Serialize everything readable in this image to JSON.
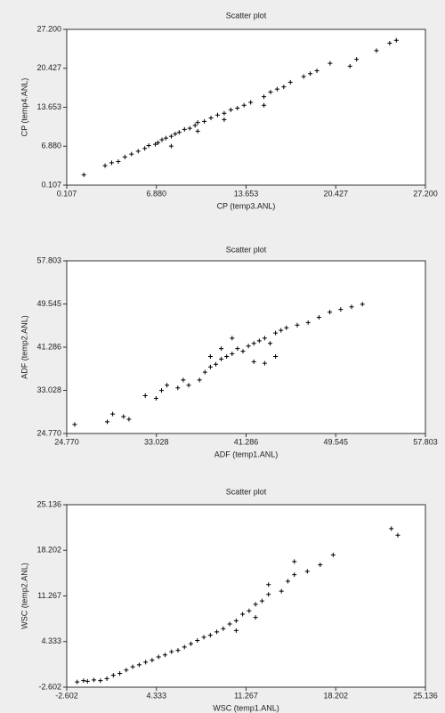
{
  "chart_data": [
    {
      "type": "scatter",
      "title": "Scatter plot",
      "x_label": "CP (temp3.ANL)",
      "y_label": "CP (temp4.ANL)",
      "color": "#000000",
      "xlim": [
        0.107,
        27.2
      ],
      "ylim": [
        0.107,
        27.2
      ],
      "xticks": [
        {
          "value": 0.107,
          "label": "0.107"
        },
        {
          "value": 6.88,
          "label": "6.880"
        },
        {
          "value": 13.653,
          "label": "13.653"
        },
        {
          "value": 20.427,
          "label": "20.427"
        },
        {
          "value": 27.2,
          "label": "27.200"
        }
      ],
      "yticks": [
        {
          "value": 0.107,
          "label": "0.107"
        },
        {
          "value": 6.88,
          "label": "6.880"
        },
        {
          "value": 13.653,
          "label": "13.653"
        },
        {
          "value": 20.427,
          "label": "20.427"
        },
        {
          "value": 27.2,
          "label": "27.200"
        }
      ],
      "x": [
        1.4,
        3,
        3.5,
        4,
        4.5,
        5,
        5.5,
        6,
        6.3,
        6.8,
        7,
        7.3,
        7.6,
        8,
        8.3,
        8.6,
        9,
        9.4,
        9.8,
        10,
        10.5,
        11,
        11.5,
        12,
        12.5,
        13,
        13.5,
        14,
        15,
        15.5,
        16,
        16.5,
        17,
        18,
        18.5,
        19,
        20,
        21.5,
        22,
        23.5,
        24.5,
        25,
        8,
        10,
        12,
        15
      ],
      "values": [
        1.9,
        3.5,
        4,
        4.2,
        5,
        5.5,
        6,
        6.5,
        7,
        7.2,
        7.5,
        8,
        8.3,
        8.6,
        9,
        9.3,
        9.8,
        10,
        10.5,
        11,
        11.2,
        11.8,
        12.3,
        12.6,
        13.2,
        13.5,
        14,
        14.5,
        15.5,
        16.3,
        16.8,
        17.2,
        18,
        19,
        19.5,
        20,
        21.3,
        20.8,
        22,
        23.5,
        24.8,
        25.3,
        6.9,
        9.5,
        11.5,
        14
      ]
    },
    {
      "type": "scatter",
      "title": "Scatter plot",
      "x_label": "ADF (temp1.ANL)",
      "y_label": "ADF (temp2.ANL)",
      "color": "#000000",
      "xlim": [
        24.77,
        57.803
      ],
      "ylim": [
        24.77,
        57.803
      ],
      "xticks": [
        {
          "value": 24.77,
          "label": "24.770"
        },
        {
          "value": 33.028,
          "label": "33.028"
        },
        {
          "value": 41.286,
          "label": "41.286"
        },
        {
          "value": 49.545,
          "label": "49.545"
        },
        {
          "value": 57.803,
          "label": "57.803"
        }
      ],
      "yticks": [
        {
          "value": 24.77,
          "label": "24.770"
        },
        {
          "value": 33.028,
          "label": "33.028"
        },
        {
          "value": 41.286,
          "label": "41.286"
        },
        {
          "value": 49.545,
          "label": "49.545"
        },
        {
          "value": 57.803,
          "label": "57.803"
        }
      ],
      "x": [
        25.5,
        28.5,
        29,
        30,
        30.5,
        32,
        33,
        33.5,
        34,
        35,
        35.5,
        36,
        37,
        37.5,
        38,
        38.5,
        39,
        39.5,
        40,
        40.5,
        41,
        41.5,
        42,
        42.5,
        43,
        43.5,
        44,
        44.5,
        45,
        46,
        47,
        48,
        49,
        50,
        51,
        52,
        42,
        43,
        44,
        38,
        39,
        40
      ],
      "values": [
        26.5,
        27,
        28.5,
        28,
        27.5,
        32,
        31.5,
        33,
        34,
        33.5,
        35,
        34,
        35,
        36.5,
        37.5,
        38,
        39,
        39.5,
        40,
        41,
        40.5,
        41.5,
        42,
        42.5,
        43,
        42,
        44,
        44.5,
        45,
        45.5,
        46,
        47,
        48,
        48.5,
        49,
        49.5,
        38.5,
        38.2,
        39.5,
        39.5,
        41,
        43
      ]
    },
    {
      "type": "scatter",
      "title": "Scatter plot",
      "x_label": "WSC (temp1.ANL)",
      "y_label": "WSC (temp2.ANL)",
      "color": "#000000",
      "xlim": [
        -2.602,
        25.136
      ],
      "ylim": [
        -2.602,
        25.136
      ],
      "xticks": [
        {
          "value": -2.602,
          "label": "-2.602"
        },
        {
          "value": 4.333,
          "label": "4.333"
        },
        {
          "value": 11.267,
          "label": "11.267"
        },
        {
          "value": 18.202,
          "label": "18.202"
        },
        {
          "value": 25.136,
          "label": "25.136"
        }
      ],
      "yticks": [
        {
          "value": -2.602,
          "label": "-2.602"
        },
        {
          "value": 4.333,
          "label": "4.333"
        },
        {
          "value": 11.267,
          "label": "11.267"
        },
        {
          "value": 18.202,
          "label": "18.202"
        },
        {
          "value": 25.136,
          "label": "25.136"
        }
      ],
      "x": [
        -1.8,
        -1.3,
        -1,
        -0.5,
        0,
        0.5,
        1,
        1.5,
        2,
        2.5,
        3,
        3.5,
        4,
        4.5,
        5,
        5.5,
        6,
        6.5,
        7,
        7.5,
        8,
        8.5,
        9,
        9.5,
        10,
        10.5,
        11,
        11.5,
        12,
        12.5,
        13,
        14,
        14.5,
        15,
        16,
        17,
        18,
        22.5,
        23,
        10.5,
        12,
        13,
        15
      ],
      "values": [
        -1.8,
        -1.6,
        -1.7,
        -1.5,
        -1.6,
        -1.3,
        -0.8,
        -0.5,
        0,
        0.5,
        0.8,
        1.2,
        1.5,
        2,
        2.3,
        2.8,
        3,
        3.5,
        4,
        4.5,
        5,
        5.3,
        5.8,
        6.3,
        7,
        7.5,
        8.5,
        9,
        10,
        10.5,
        11.5,
        12,
        13.5,
        14.5,
        15,
        16,
        17.5,
        21.5,
        20.5,
        6,
        8,
        13,
        16.5
      ]
    }
  ]
}
